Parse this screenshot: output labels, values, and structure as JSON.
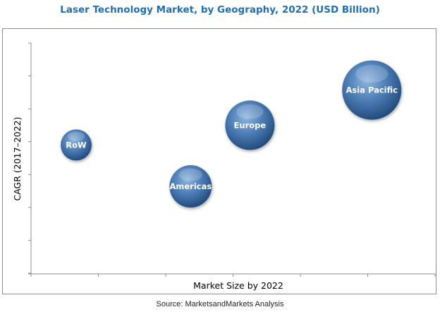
{
  "chart_data": {
    "type": "scatter",
    "subtype": "bubble",
    "title": "Laser Technology Market, by Geography, 2022 (USD Billion)",
    "xlabel": "Market Size by 2022",
    "ylabel": "CAGR (2017–2022)",
    "x_tick_labels_shown": false,
    "y_tick_labels_shown": false,
    "xlim": [
      0,
      6
    ],
    "ylim": [
      0,
      7
    ],
    "grid": false,
    "legend": "none",
    "bubble_color": "#3a6ea8",
    "points": [
      {
        "label": "RoW",
        "x": 0.67,
        "y": 3.9,
        "size": 22
      },
      {
        "label": "Americas",
        "x": 2.37,
        "y": 2.64,
        "size": 30
      },
      {
        "label": "Europe",
        "x": 3.25,
        "y": 4.5,
        "size": 35
      },
      {
        "label": "Asia Pacific",
        "x": 5.06,
        "y": 5.57,
        "size": 42
      }
    ]
  },
  "source": "Source: MarketsandMarkets Analysis"
}
